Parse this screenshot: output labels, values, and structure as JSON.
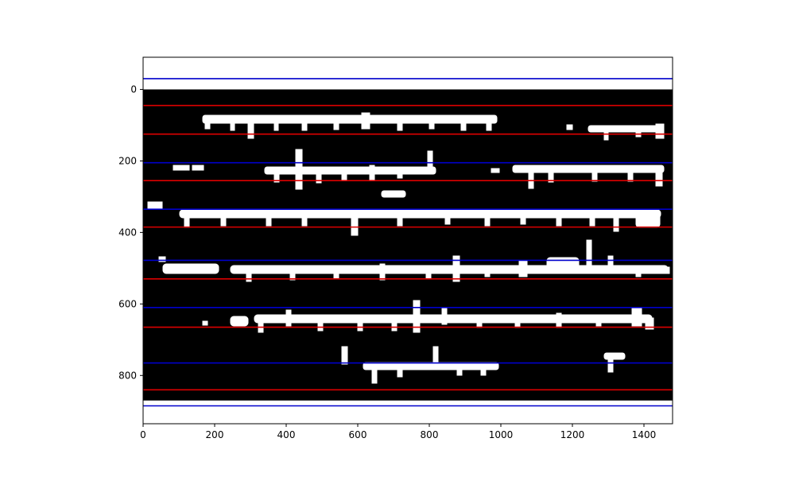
{
  "chart_data": {
    "type": "image-with-lines",
    "xlim": [
      0,
      1480
    ],
    "ylim": [
      935,
      -90
    ],
    "x_ticks": [
      0,
      200,
      400,
      600,
      800,
      1000,
      1200,
      1400
    ],
    "y_ticks": [
      0,
      200,
      400,
      600,
      800
    ],
    "x_tick_labels": [
      "0",
      "200",
      "400",
      "600",
      "800",
      "1000",
      "1200",
      "1400"
    ],
    "y_tick_labels": [
      "0",
      "200",
      "400",
      "600",
      "800"
    ],
    "image": {
      "extent_x": [
        0,
        1480
      ],
      "extent_y": [
        0,
        870
      ],
      "background": "#000000",
      "ink": "#ffffff",
      "content": "binarized manuscript text lines"
    },
    "lines": {
      "red": {
        "color": "#dd0000",
        "y": [
          45,
          125,
          255,
          385,
          530,
          665,
          840
        ]
      },
      "blue": {
        "color": "#0000cc",
        "y": [
          -30,
          205,
          335,
          478,
          610,
          765,
          885
        ]
      }
    },
    "grid": false
  }
}
